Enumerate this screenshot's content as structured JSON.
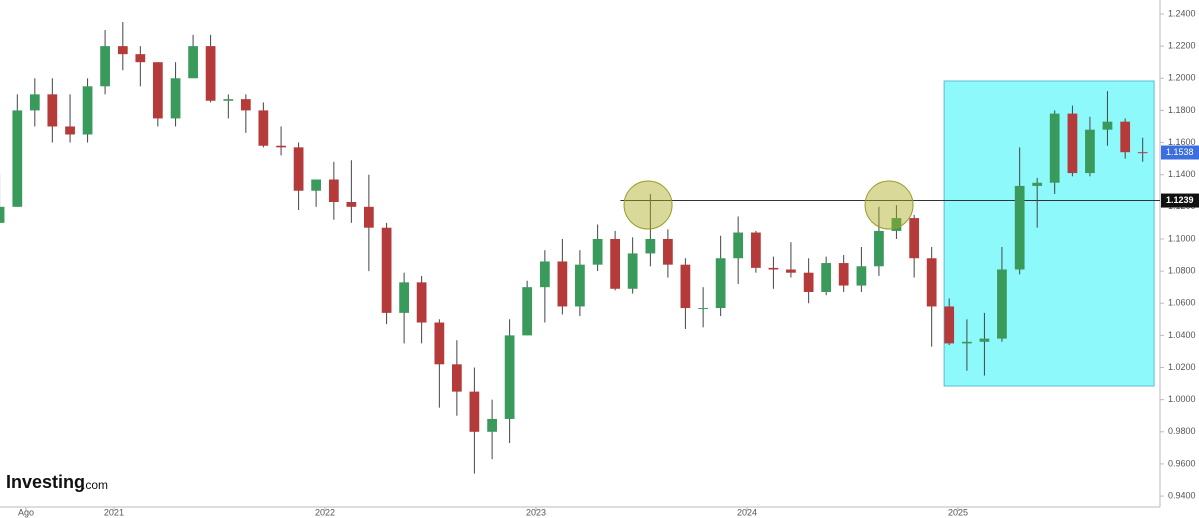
{
  "chart_data": {
    "type": "candlestick",
    "brand": {
      "name": "Investing",
      "suffix": ".com"
    },
    "xlim": [
      2020.46,
      2025.957
    ],
    "ylim": [
      0.9332,
      1.2487
    ],
    "xticks": [
      {
        "value": 2020.583,
        "label": "Ago"
      },
      2021,
      2022,
      2023,
      2024,
      2025
    ],
    "yticks": [
      {
        "value": 0.94,
        "label": "0.9400"
      },
      {
        "value": 0.96,
        "label": "0.9600"
      },
      {
        "value": 0.98,
        "label": "0.9800"
      },
      {
        "value": 1.0,
        "label": "1.0000"
      },
      {
        "value": 1.02,
        "label": "1.0200"
      },
      {
        "value": 1.04,
        "label": "1.0400"
      },
      {
        "value": 1.06,
        "label": "1.0600"
      },
      {
        "value": 1.08,
        "label": "1.0800"
      },
      {
        "value": 1.1,
        "label": "1.1000"
      },
      {
        "value": 1.12,
        "label": "1.1200"
      },
      {
        "value": 1.14,
        "label": "1.1400"
      },
      {
        "value": 1.16,
        "label": "1.1600"
      },
      {
        "value": 1.18,
        "label": "1.1800"
      },
      {
        "value": 1.2,
        "label": "1.2000"
      },
      {
        "value": 1.22,
        "label": "1.2200"
      },
      {
        "value": 1.24,
        "label": "1.2400"
      }
    ],
    "up_color": "#3a9a5c",
    "down_color": "#b53b3b",
    "x": [
      2020.458,
      2020.542,
      2020.625,
      2020.708,
      2020.792,
      2020.875,
      2020.958,
      2021.042,
      2021.125,
      2021.208,
      2021.292,
      2021.375,
      2021.458,
      2021.542,
      2021.625,
      2021.708,
      2021.792,
      2021.875,
      2021.958,
      2022.042,
      2022.125,
      2022.208,
      2022.292,
      2022.375,
      2022.458,
      2022.542,
      2022.625,
      2022.708,
      2022.792,
      2022.875,
      2022.958,
      2023.042,
      2023.125,
      2023.208,
      2023.292,
      2023.375,
      2023.458,
      2023.542,
      2023.625,
      2023.708,
      2023.792,
      2023.875,
      2023.958,
      2024.042,
      2024.125,
      2024.208,
      2024.292,
      2024.375,
      2024.458,
      2024.542,
      2024.625,
      2024.708,
      2024.792,
      2024.875,
      2024.958,
      2025.042,
      2025.125,
      2025.208,
      2025.292,
      2025.375,
      2025.458,
      2025.542,
      2025.625,
      2025.708,
      2025.792,
      2025.875
    ],
    "open": [
      1.11,
      1.12,
      1.18,
      1.19,
      1.17,
      1.165,
      1.195,
      1.22,
      1.215,
      1.21,
      1.175,
      1.2,
      1.22,
      1.186,
      1.187,
      1.18,
      1.158,
      1.157,
      1.13,
      1.137,
      1.123,
      1.12,
      1.107,
      1.054,
      1.073,
      1.048,
      1.022,
      1.005,
      0.98,
      0.988,
      1.04,
      1.07,
      1.086,
      1.058,
      1.084,
      1.1,
      1.069,
      1.091,
      1.1,
      1.084,
      1.057,
      1.057,
      1.088,
      1.104,
      1.082,
      1.081,
      1.079,
      1.067,
      1.085,
      1.071,
      1.083,
      1.105,
      1.113,
      1.088,
      1.058,
      1.035,
      1.036,
      1.038,
      1.081,
      1.133,
      1.135,
      1.178,
      1.141,
      1.168,
      1.173,
      1.154
    ],
    "high": [
      1.14,
      1.19,
      1.2,
      1.2,
      1.19,
      1.2,
      1.23,
      1.235,
      1.22,
      1.21,
      1.21,
      1.227,
      1.227,
      1.19,
      1.19,
      1.185,
      1.17,
      1.16,
      1.137,
      1.148,
      1.149,
      1.14,
      1.11,
      1.079,
      1.077,
      1.05,
      1.037,
      1.02,
      1.0,
      1.05,
      1.074,
      1.093,
      1.1,
      1.093,
      1.109,
      1.105,
      1.101,
      1.128,
      1.106,
      1.088,
      1.07,
      1.102,
      1.114,
      1.105,
      1.089,
      1.098,
      1.088,
      1.089,
      1.09,
      1.095,
      1.12,
      1.121,
      1.115,
      1.095,
      1.063,
      1.05,
      1.054,
      1.095,
      1.157,
      1.138,
      1.18,
      1.183,
      1.176,
      1.192,
      1.175,
      1.163
    ],
    "low": [
      1.11,
      1.12,
      1.17,
      1.16,
      1.16,
      1.16,
      1.19,
      1.205,
      1.195,
      1.17,
      1.17,
      1.2,
      1.185,
      1.175,
      1.166,
      1.157,
      1.152,
      1.118,
      1.12,
      1.112,
      1.11,
      1.08,
      1.047,
      1.035,
      1.035,
      0.995,
      0.99,
      0.954,
      0.963,
      0.973,
      1.04,
      1.048,
      1.053,
      1.052,
      1.08,
      1.068,
      1.066,
      1.083,
      1.076,
      1.044,
      1.045,
      1.052,
      1.072,
      1.079,
      1.069,
      1.076,
      1.06,
      1.065,
      1.067,
      1.067,
      1.077,
      1.1,
      1.076,
      1.033,
      1.034,
      1.018,
      1.015,
      1.036,
      1.078,
      1.107,
      1.128,
      1.139,
      1.139,
      1.158,
      1.15,
      1.148
    ],
    "close": [
      1.12,
      1.18,
      1.19,
      1.17,
      1.165,
      1.195,
      1.22,
      1.215,
      1.21,
      1.175,
      1.2,
      1.22,
      1.186,
      1.187,
      1.18,
      1.158,
      1.157,
      1.13,
      1.137,
      1.123,
      1.12,
      1.107,
      1.054,
      1.073,
      1.048,
      1.022,
      1.005,
      0.98,
      0.988,
      1.04,
      1.07,
      1.086,
      1.058,
      1.084,
      1.1,
      1.069,
      1.091,
      1.1,
      1.084,
      1.057,
      1.057,
      1.088,
      1.104,
      1.082,
      1.081,
      1.079,
      1.067,
      1.085,
      1.071,
      1.083,
      1.105,
      1.113,
      1.088,
      1.058,
      1.035,
      1.036,
      1.038,
      1.081,
      1.133,
      1.135,
      1.178,
      1.141,
      1.168,
      1.173,
      1.154,
      1.1538
    ],
    "hline": {
      "value": 1.1239,
      "x_start": 2023.4,
      "color": "#333333"
    },
    "last_price": {
      "value": 1.1538,
      "color": "#3b6fe0"
    },
    "highlight_box": {
      "x": [
        2024.934,
        2025.929
      ],
      "y": [
        1.0085,
        1.1983
      ],
      "color": "#8ef9fb"
    },
    "circles": [
      {
        "x": 2023.531,
        "y": 1.1211
      },
      {
        "x": 2024.673,
        "y": 1.1211
      }
    ]
  }
}
